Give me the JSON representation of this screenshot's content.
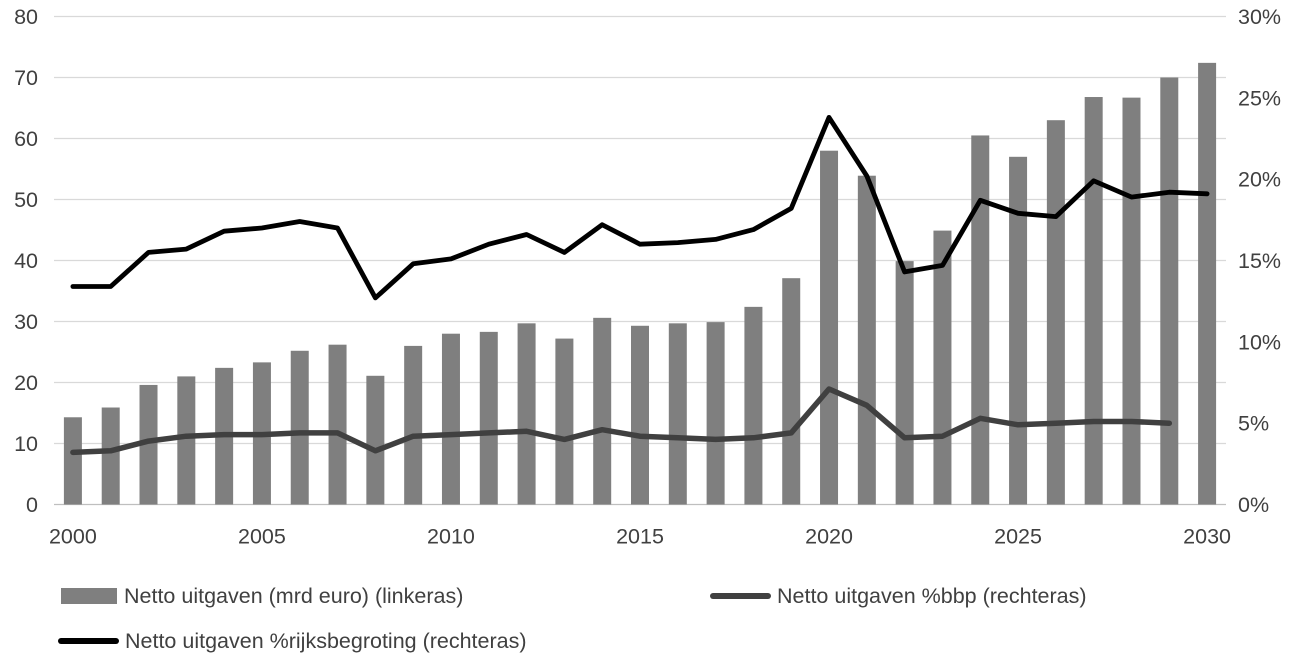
{
  "chart_data": {
    "type": "combo-bar-line",
    "title": "",
    "x": [
      2000,
      2001,
      2002,
      2003,
      2004,
      2005,
      2006,
      2007,
      2008,
      2009,
      2010,
      2011,
      2012,
      2013,
      2014,
      2015,
      2016,
      2017,
      2018,
      2019,
      2020,
      2021,
      2022,
      2023,
      2024,
      2025,
      2026,
      2027,
      2028,
      2029,
      2030
    ],
    "x_tick_labels": [
      "2000",
      "2005",
      "2010",
      "2015",
      "2020",
      "2025",
      "2030"
    ],
    "x_tick_years": [
      2000,
      2005,
      2010,
      2015,
      2020,
      2025,
      2030
    ],
    "left_axis": {
      "min": 0,
      "max": 80,
      "tick_step": 10,
      "tick_labels": [
        "0",
        "10",
        "20",
        "30",
        "40",
        "50",
        "60",
        "70",
        "80"
      ]
    },
    "right_axis": {
      "min": 0,
      "max": 30,
      "tick_step": 5,
      "tick_labels": [
        "0%",
        "5%",
        "10%",
        "15%",
        "20%",
        "25%",
        "30%"
      ]
    },
    "grid": true,
    "legend_position": "bottom",
    "series": [
      {
        "name": "Netto uitgaven (mrd euro) (linkeras)",
        "type": "bar",
        "axis": "left",
        "color": "#7f7f7f",
        "values": [
          14.3,
          15.9,
          19.6,
          21.0,
          22.4,
          23.3,
          25.2,
          26.2,
          21.1,
          26.0,
          28.0,
          28.3,
          29.7,
          27.2,
          30.6,
          29.3,
          29.7,
          29.9,
          32.4,
          37.1,
          58.0,
          53.9,
          39.9,
          44.9,
          60.5,
          57.0,
          63.0,
          66.8,
          66.7,
          70.0,
          72.4
        ]
      },
      {
        "name": "Netto uitgaven %bbp (rechteras)",
        "type": "line",
        "axis": "right",
        "color": "#404040",
        "values": [
          3.2,
          3.3,
          3.9,
          4.2,
          4.3,
          4.3,
          4.4,
          4.4,
          3.3,
          4.2,
          4.3,
          4.4,
          4.5,
          4.0,
          4.6,
          4.2,
          4.1,
          4.0,
          4.1,
          4.4,
          7.1,
          6.1,
          4.1,
          4.2,
          5.3,
          4.9,
          5.0,
          5.1,
          5.1,
          5.0,
          null
        ]
      },
      {
        "name": "Netto uitgaven %rijksbegroting (rechteras)",
        "type": "line",
        "axis": "right",
        "color": "#000000",
        "values": [
          13.4,
          13.4,
          15.5,
          15.7,
          16.8,
          17.0,
          17.4,
          17.0,
          12.7,
          14.8,
          15.1,
          16.0,
          16.6,
          15.5,
          17.2,
          16.0,
          16.1,
          16.3,
          16.9,
          18.2,
          23.8,
          20.2,
          14.3,
          14.7,
          18.7,
          17.9,
          17.7,
          19.9,
          18.9,
          19.2,
          19.1
        ]
      }
    ]
  },
  "colors": {
    "background": "#ffffff",
    "gridline": "#d9d9d9",
    "axis_line": "#bfbfbf",
    "text": "#404040"
  }
}
